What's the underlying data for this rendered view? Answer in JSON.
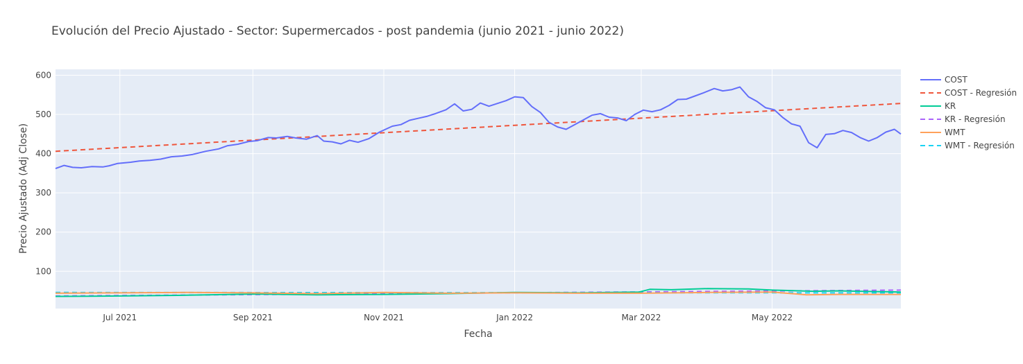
{
  "chart_data": {
    "type": "line",
    "title": "Evolución del Precio Ajustado - Sector: Supermercados - post pandemia (junio 2021 - junio 2022)",
    "xlabel": "Fecha",
    "ylabel": "Precio Ajustado (Adj Close)",
    "xlim": [
      "2021-06-01",
      "2022-06-30"
    ],
    "ylim": [
      5,
      615
    ],
    "x_ticks": [
      {
        "date": "2021-07-01",
        "label": "Jul 2021"
      },
      {
        "date": "2021-09-01",
        "label": "Sep 2021"
      },
      {
        "date": "2021-11-01",
        "label": "Nov 2021"
      },
      {
        "date": "2022-01-01",
        "label": "Jan 2022"
      },
      {
        "date": "2022-03-01",
        "label": "Mar 2022"
      },
      {
        "date": "2022-05-01",
        "label": "May 2022"
      }
    ],
    "y_ticks": [
      100,
      200,
      300,
      400,
      500,
      600
    ],
    "grid": true,
    "legend_position": "right",
    "plot_background": "#e5ecf6",
    "series": [
      {
        "name": "COST",
        "color": "#636efa",
        "dash": "solid",
        "points": [
          [
            "2021-06-01",
            362
          ],
          [
            "2021-06-05",
            370
          ],
          [
            "2021-06-09",
            365
          ],
          [
            "2021-06-13",
            364
          ],
          [
            "2021-06-18",
            367
          ],
          [
            "2021-06-23",
            366
          ],
          [
            "2021-06-26",
            369
          ],
          [
            "2021-06-30",
            375
          ],
          [
            "2021-07-06",
            378
          ],
          [
            "2021-07-10",
            381
          ],
          [
            "2021-07-15",
            383
          ],
          [
            "2021-07-20",
            386
          ],
          [
            "2021-07-25",
            392
          ],
          [
            "2021-07-30",
            394
          ],
          [
            "2021-08-04",
            398
          ],
          [
            "2021-08-10",
            406
          ],
          [
            "2021-08-16",
            412
          ],
          [
            "2021-08-20",
            420
          ],
          [
            "2021-08-25",
            424
          ],
          [
            "2021-08-30",
            431
          ],
          [
            "2021-09-03",
            433
          ],
          [
            "2021-09-08",
            441
          ],
          [
            "2021-09-12",
            440
          ],
          [
            "2021-09-17",
            444
          ],
          [
            "2021-09-21",
            440
          ],
          [
            "2021-09-26",
            437
          ],
          [
            "2021-10-01",
            446
          ],
          [
            "2021-10-04",
            432
          ],
          [
            "2021-10-08",
            430
          ],
          [
            "2021-10-12",
            425
          ],
          [
            "2021-10-16",
            434
          ],
          [
            "2021-10-20",
            429
          ],
          [
            "2021-10-25",
            438
          ],
          [
            "2021-10-30",
            455
          ],
          [
            "2021-11-05",
            470
          ],
          [
            "2021-11-09",
            474
          ],
          [
            "2021-11-13",
            485
          ],
          [
            "2021-11-17",
            490
          ],
          [
            "2021-11-21",
            495
          ],
          [
            "2021-11-25",
            502
          ],
          [
            "2021-11-30",
            512
          ],
          [
            "2021-12-04",
            527
          ],
          [
            "2021-12-08",
            509
          ],
          [
            "2021-12-12",
            513
          ],
          [
            "2021-12-16",
            529
          ],
          [
            "2021-12-20",
            521
          ],
          [
            "2021-12-24",
            528
          ],
          [
            "2021-12-28",
            535
          ],
          [
            "2022-01-01",
            545
          ],
          [
            "2022-01-05",
            543
          ],
          [
            "2022-01-09",
            520
          ],
          [
            "2022-01-13",
            505
          ],
          [
            "2022-01-17",
            480
          ],
          [
            "2022-01-21",
            468
          ],
          [
            "2022-01-25",
            462
          ],
          [
            "2022-01-29",
            474
          ],
          [
            "2022-02-02",
            486
          ],
          [
            "2022-02-06",
            498
          ],
          [
            "2022-02-10",
            502
          ],
          [
            "2022-02-14",
            493
          ],
          [
            "2022-02-18",
            491
          ],
          [
            "2022-02-22",
            484
          ],
          [
            "2022-02-26",
            500
          ],
          [
            "2022-03-02",
            511
          ],
          [
            "2022-03-06",
            507
          ],
          [
            "2022-03-10",
            512
          ],
          [
            "2022-03-14",
            523
          ],
          [
            "2022-03-18",
            538
          ],
          [
            "2022-03-22",
            539
          ],
          [
            "2022-03-26",
            547
          ],
          [
            "2022-03-30",
            555
          ],
          [
            "2022-04-04",
            566
          ],
          [
            "2022-04-08",
            560
          ],
          [
            "2022-04-12",
            563
          ],
          [
            "2022-04-16",
            570
          ],
          [
            "2022-04-20",
            545
          ],
          [
            "2022-04-24",
            533
          ],
          [
            "2022-04-28",
            517
          ],
          [
            "2022-05-02",
            512
          ],
          [
            "2022-05-06",
            492
          ],
          [
            "2022-05-10",
            476
          ],
          [
            "2022-05-14",
            470
          ],
          [
            "2022-05-18",
            428
          ],
          [
            "2022-05-22",
            415
          ],
          [
            "2022-05-26",
            449
          ],
          [
            "2022-05-30",
            451
          ],
          [
            "2022-06-03",
            459
          ],
          [
            "2022-06-07",
            454
          ],
          [
            "2022-06-11",
            441
          ],
          [
            "2022-06-15",
            432
          ],
          [
            "2022-06-19",
            441
          ],
          [
            "2022-06-23",
            455
          ],
          [
            "2022-06-27",
            462
          ],
          [
            "2022-06-30",
            450
          ]
        ]
      },
      {
        "name": "COST - Regresión",
        "color": "#ef553b",
        "dash": "dashed",
        "points": [
          [
            "2021-06-01",
            406
          ],
          [
            "2022-06-30",
            528
          ]
        ]
      },
      {
        "name": "KR",
        "color": "#00cc96",
        "dash": "solid",
        "points": [
          [
            "2021-06-01",
            36
          ],
          [
            "2021-07-01",
            37
          ],
          [
            "2021-08-01",
            39
          ],
          [
            "2021-09-01",
            42
          ],
          [
            "2021-10-01",
            40
          ],
          [
            "2021-11-01",
            41
          ],
          [
            "2021-12-01",
            43
          ],
          [
            "2022-01-01",
            46
          ],
          [
            "2022-02-01",
            45
          ],
          [
            "2022-02-28",
            47
          ],
          [
            "2022-03-05",
            54
          ],
          [
            "2022-03-15",
            53
          ],
          [
            "2022-04-01",
            56
          ],
          [
            "2022-04-20",
            55
          ],
          [
            "2022-05-01",
            52
          ],
          [
            "2022-05-20",
            49
          ],
          [
            "2022-06-01",
            50
          ],
          [
            "2022-06-30",
            47
          ]
        ]
      },
      {
        "name": "KR - Regresión",
        "color": "#ab63fa",
        "dash": "dashed",
        "points": [
          [
            "2021-06-01",
            37
          ],
          [
            "2022-06-30",
            52
          ]
        ]
      },
      {
        "name": "WMT",
        "color": "#ffa15a",
        "dash": "solid",
        "points": [
          [
            "2021-06-01",
            44
          ],
          [
            "2021-08-01",
            46
          ],
          [
            "2021-09-01",
            45
          ],
          [
            "2021-10-01",
            43
          ],
          [
            "2021-11-01",
            46
          ],
          [
            "2021-12-01",
            44
          ],
          [
            "2022-01-01",
            45
          ],
          [
            "2022-02-01",
            44
          ],
          [
            "2022-03-01",
            44
          ],
          [
            "2022-04-01",
            46
          ],
          [
            "2022-05-01",
            47
          ],
          [
            "2022-05-17",
            40
          ],
          [
            "2022-06-01",
            41
          ],
          [
            "2022-06-30",
            41
          ]
        ]
      },
      {
        "name": "WMT - Regresión",
        "color": "#19d3f3",
        "dash": "dashed",
        "points": [
          [
            "2021-06-01",
            46
          ],
          [
            "2022-06-30",
            45
          ]
        ]
      }
    ]
  }
}
